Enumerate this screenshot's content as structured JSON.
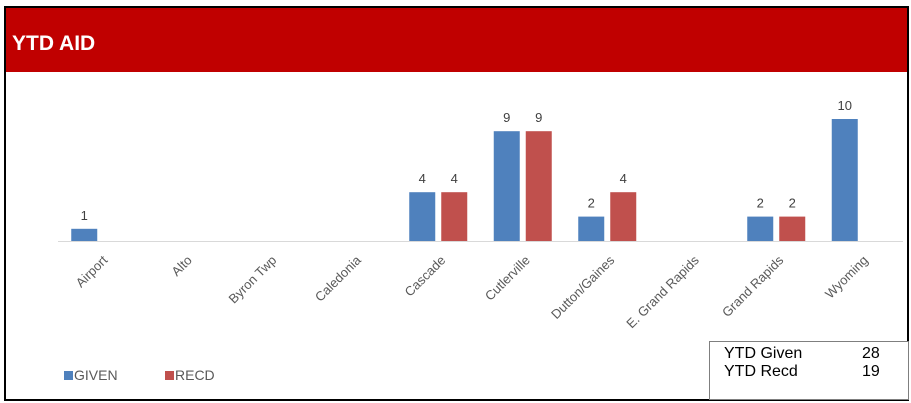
{
  "header": {
    "title": "YTD AID"
  },
  "colors": {
    "header_bg": "#c00000",
    "given": "#4f81bd",
    "recd": "#c0504d"
  },
  "chart_data": {
    "type": "bar",
    "title": "",
    "categories": [
      "Airport",
      "Alto",
      "Byron Twp",
      "Caledonia",
      "Cascade",
      "Cutlerville",
      "Dutton/Gaines",
      "E. Grand Rapids",
      "Grand Rapids",
      "Wyoming"
    ],
    "series": [
      {
        "name": "GIVEN",
        "values": [
          1,
          null,
          null,
          null,
          4,
          9,
          2,
          null,
          2,
          10
        ]
      },
      {
        "name": "RECD",
        "values": [
          null,
          null,
          null,
          null,
          4,
          9,
          4,
          null,
          2,
          null
        ]
      }
    ],
    "ylim": [
      0,
      10
    ],
    "grid": false,
    "legend_position": "bottom-left"
  },
  "summary": {
    "given_label": "YTD Given",
    "given_value": "28",
    "recd_label": "YTD Recd",
    "recd_value": "19"
  }
}
